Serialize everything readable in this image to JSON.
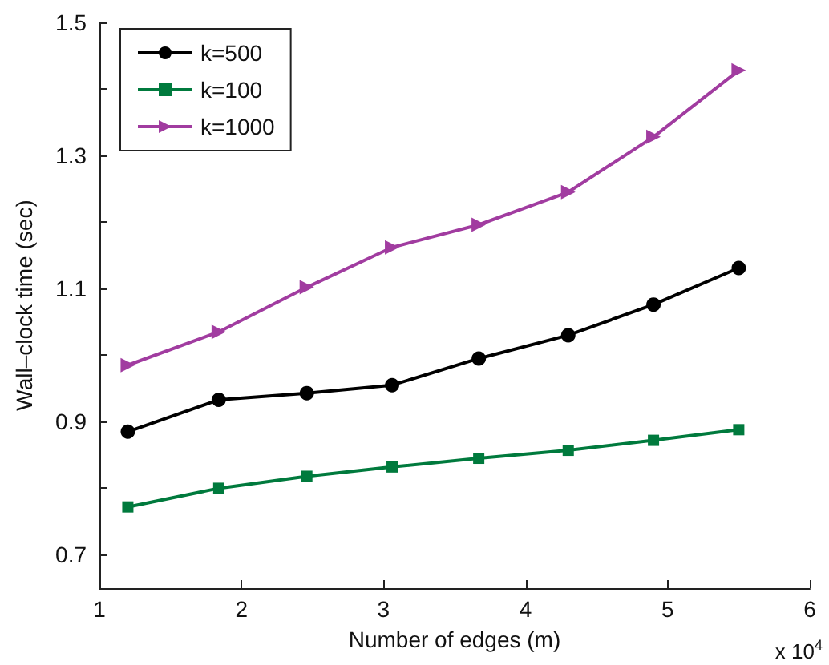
{
  "chart_data": {
    "type": "line",
    "xlabel": "Number of edges (m)",
    "ylabel": "Wall–clock time (sec)",
    "annotations": [
      "x 10$^{4}$"
    ],
    "x": [
      1.2,
      1.84,
      2.46,
      3.06,
      3.67,
      4.3,
      4.9,
      5.5
    ],
    "series": [
      {
        "name": "k=500",
        "color": "#000000",
        "marker": "circle",
        "values": [
          0.885,
          0.933,
          0.943,
          0.955,
          0.995,
          1.03,
          1.076,
          1.131
        ]
      },
      {
        "name": "k=100",
        "color": "#007a3d",
        "marker": "square",
        "values": [
          0.772,
          0.8,
          0.818,
          0.832,
          0.845,
          0.857,
          0.872,
          0.888
        ]
      },
      {
        "name": "k=1000",
        "color": "#a13ca0",
        "marker": "triangle",
        "values": [
          0.985,
          1.035,
          1.102,
          1.162,
          1.196,
          1.245,
          1.328,
          1.428
        ]
      }
    ],
    "xlim": [
      1,
      6
    ],
    "xticks": [
      1,
      2,
      3,
      4,
      5,
      6
    ],
    "ylim": [
      0.65,
      1.5
    ],
    "yticks": [
      0.7,
      {
        "value": 0.8,
        "label": null
      },
      0.9,
      {
        "value": 1.0,
        "label": null
      },
      1.1,
      {
        "value": 1.2,
        "label": null
      },
      1.3,
      {
        "value": 1.4,
        "label": null
      },
      1.5
    ],
    "grid": false,
    "legend": "top left",
    "line_style": "solid"
  }
}
